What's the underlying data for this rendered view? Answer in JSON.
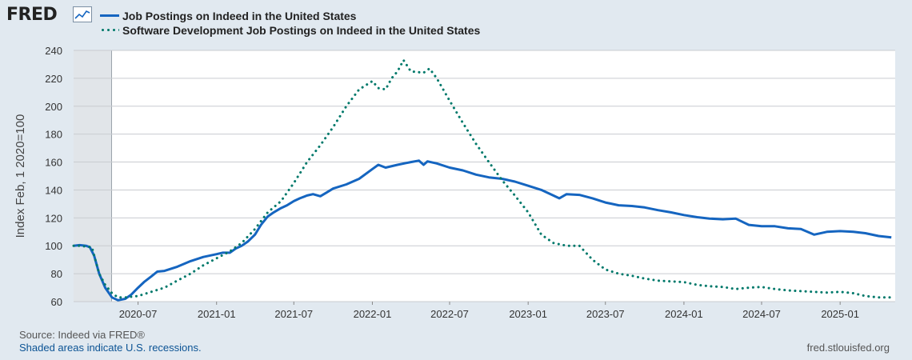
{
  "branding": {
    "logo_text": "FRED",
    "logo_icon": "chart-line-icon",
    "site": "fred.stlouisfed.org"
  },
  "colors": {
    "background": "#e1e9f0",
    "plot_bg": "#ffffff",
    "series_total": "#1565c0",
    "series_software": "#00796b",
    "recession": "#e1e5e9",
    "grid": "#c9ccd0"
  },
  "legend": {
    "items": [
      {
        "label": "Job Postings on Indeed in the United States",
        "style": "solid"
      },
      {
        "label": "Software Development Job Postings on Indeed in the United States",
        "style": "dotted"
      }
    ]
  },
  "footer": {
    "source": "Source: Indeed via FRED®",
    "shaded_note": "Shaded areas indicate U.S. recessions."
  },
  "chart_data": {
    "type": "line",
    "title": "",
    "xlabel": "",
    "ylabel": "Index Feb, 1 2020=100",
    "x_range": [
      "2020-02-01",
      "2025-05-10"
    ],
    "ylim": [
      60,
      240
    ],
    "yticks": [
      60,
      80,
      100,
      120,
      140,
      160,
      180,
      200,
      220,
      240
    ],
    "xticks": [
      "2020-07",
      "2021-01",
      "2021-07",
      "2022-01",
      "2022-07",
      "2023-01",
      "2023-07",
      "2024-01",
      "2024-07",
      "2025-01"
    ],
    "grid": true,
    "legend_position": "top-left",
    "recession_shading": [
      {
        "start": "2020-02-01",
        "end": "2020-04-30"
      }
    ],
    "series": [
      {
        "name": "Job Postings on Indeed in the United States",
        "style": "solid",
        "points": [
          [
            "2020-02-01",
            100
          ],
          [
            "2020-02-15",
            100.5
          ],
          [
            "2020-03-01",
            100
          ],
          [
            "2020-03-10",
            99
          ],
          [
            "2020-03-20",
            93
          ],
          [
            "2020-04-01",
            80
          ],
          [
            "2020-04-15",
            70
          ],
          [
            "2020-05-01",
            63
          ],
          [
            "2020-05-15",
            61
          ],
          [
            "2020-06-01",
            62
          ],
          [
            "2020-06-15",
            65
          ],
          [
            "2020-07-01",
            70
          ],
          [
            "2020-07-15",
            74
          ],
          [
            "2020-08-01",
            78
          ],
          [
            "2020-08-15",
            81.5
          ],
          [
            "2020-09-01",
            82
          ],
          [
            "2020-10-01",
            85
          ],
          [
            "2020-11-01",
            89
          ],
          [
            "2020-12-01",
            92
          ],
          [
            "2021-01-01",
            94
          ],
          [
            "2021-01-15",
            95
          ],
          [
            "2021-02-01",
            95
          ],
          [
            "2021-02-15",
            98
          ],
          [
            "2021-03-01",
            100
          ],
          [
            "2021-03-15",
            103
          ],
          [
            "2021-04-01",
            108
          ],
          [
            "2021-04-15",
            115
          ],
          [
            "2021-05-01",
            121
          ],
          [
            "2021-05-15",
            124
          ],
          [
            "2021-06-01",
            127
          ],
          [
            "2021-06-15",
            129
          ],
          [
            "2021-07-01",
            132
          ],
          [
            "2021-07-15",
            134
          ],
          [
            "2021-08-01",
            136
          ],
          [
            "2021-08-15",
            137
          ],
          [
            "2021-09-01",
            135.5
          ],
          [
            "2021-09-15",
            138
          ],
          [
            "2021-10-01",
            141
          ],
          [
            "2021-11-01",
            144
          ],
          [
            "2021-12-01",
            148
          ],
          [
            "2022-01-01",
            155
          ],
          [
            "2022-01-15",
            158
          ],
          [
            "2022-02-01",
            156
          ],
          [
            "2022-03-01",
            158
          ],
          [
            "2022-04-01",
            160
          ],
          [
            "2022-04-20",
            161
          ],
          [
            "2022-05-01",
            158
          ],
          [
            "2022-05-10",
            160.5
          ],
          [
            "2022-06-01",
            159
          ],
          [
            "2022-07-01",
            156
          ],
          [
            "2022-08-01",
            154
          ],
          [
            "2022-09-01",
            151
          ],
          [
            "2022-10-01",
            149
          ],
          [
            "2022-11-01",
            148
          ],
          [
            "2022-12-01",
            146
          ],
          [
            "2023-01-01",
            143
          ],
          [
            "2023-02-01",
            140
          ],
          [
            "2023-03-01",
            136
          ],
          [
            "2023-03-15",
            134
          ],
          [
            "2023-04-01",
            137
          ],
          [
            "2023-05-01",
            136.5
          ],
          [
            "2023-06-01",
            134
          ],
          [
            "2023-07-01",
            131
          ],
          [
            "2023-08-01",
            129
          ],
          [
            "2023-09-01",
            128.5
          ],
          [
            "2023-10-01",
            127.5
          ],
          [
            "2023-11-01",
            125.5
          ],
          [
            "2023-12-01",
            124
          ],
          [
            "2024-01-01",
            122
          ],
          [
            "2024-02-01",
            120.5
          ],
          [
            "2024-03-01",
            119.5
          ],
          [
            "2024-04-01",
            119
          ],
          [
            "2024-05-01",
            119.5
          ],
          [
            "2024-06-01",
            115
          ],
          [
            "2024-07-01",
            114
          ],
          [
            "2024-08-01",
            114
          ],
          [
            "2024-09-01",
            112.5
          ],
          [
            "2024-10-01",
            112
          ],
          [
            "2024-11-01",
            108
          ],
          [
            "2024-12-01",
            110
          ],
          [
            "2025-01-01",
            110.5
          ],
          [
            "2025-02-01",
            110
          ],
          [
            "2025-03-01",
            109
          ],
          [
            "2025-04-01",
            107
          ],
          [
            "2025-05-01",
            106
          ]
        ]
      },
      {
        "name": "Software Development Job Postings on Indeed in the United States",
        "style": "dotted",
        "points": [
          [
            "2020-02-01",
            100
          ],
          [
            "2020-02-15",
            100
          ],
          [
            "2020-03-01",
            99.5
          ],
          [
            "2020-03-15",
            99
          ],
          [
            "2020-04-01",
            80
          ],
          [
            "2020-04-15",
            72
          ],
          [
            "2020-05-01",
            66
          ],
          [
            "2020-05-15",
            63
          ],
          [
            "2020-06-01",
            63
          ],
          [
            "2020-07-01",
            64
          ],
          [
            "2020-08-01",
            67
          ],
          [
            "2020-09-01",
            70
          ],
          [
            "2020-10-01",
            75
          ],
          [
            "2020-11-01",
            80
          ],
          [
            "2020-12-01",
            86
          ],
          [
            "2021-01-01",
            91
          ],
          [
            "2021-02-01",
            96
          ],
          [
            "2021-03-01",
            102
          ],
          [
            "2021-04-01",
            112
          ],
          [
            "2021-05-01",
            124
          ],
          [
            "2021-06-01",
            132
          ],
          [
            "2021-07-01",
            145
          ],
          [
            "2021-08-01",
            160
          ],
          [
            "2021-09-01",
            172
          ],
          [
            "2021-10-01",
            185
          ],
          [
            "2021-11-01",
            200
          ],
          [
            "2021-12-01",
            212
          ],
          [
            "2022-01-01",
            218
          ],
          [
            "2022-01-15",
            213
          ],
          [
            "2022-02-01",
            212
          ],
          [
            "2022-02-15",
            220
          ],
          [
            "2022-03-01",
            225
          ],
          [
            "2022-03-15",
            233
          ],
          [
            "2022-04-01",
            225
          ],
          [
            "2022-05-01",
            224
          ],
          [
            "2022-05-15",
            227
          ],
          [
            "2022-06-01",
            220
          ],
          [
            "2022-07-01",
            204
          ],
          [
            "2022-08-01",
            188
          ],
          [
            "2022-09-01",
            173
          ],
          [
            "2022-10-01",
            160
          ],
          [
            "2022-11-01",
            147
          ],
          [
            "2022-12-01",
            136
          ],
          [
            "2023-01-01",
            124
          ],
          [
            "2023-02-01",
            108
          ],
          [
            "2023-03-01",
            102
          ],
          [
            "2023-04-01",
            100
          ],
          [
            "2023-05-01",
            100
          ],
          [
            "2023-06-01",
            90
          ],
          [
            "2023-07-01",
            83
          ],
          [
            "2023-08-01",
            80
          ],
          [
            "2023-09-01",
            78.5
          ],
          [
            "2023-10-01",
            76.5
          ],
          [
            "2023-11-01",
            75
          ],
          [
            "2023-12-01",
            74.5
          ],
          [
            "2024-01-01",
            74
          ],
          [
            "2024-02-01",
            72
          ],
          [
            "2024-03-01",
            71
          ],
          [
            "2024-04-01",
            70.5
          ],
          [
            "2024-05-01",
            69
          ],
          [
            "2024-06-01",
            70
          ],
          [
            "2024-07-01",
            70.5
          ],
          [
            "2024-08-01",
            69
          ],
          [
            "2024-09-01",
            68
          ],
          [
            "2024-10-01",
            67.5
          ],
          [
            "2024-11-01",
            67
          ],
          [
            "2024-12-01",
            66.5
          ],
          [
            "2025-01-01",
            67
          ],
          [
            "2025-02-01",
            66
          ],
          [
            "2025-03-01",
            64
          ],
          [
            "2025-04-01",
            63
          ],
          [
            "2025-05-01",
            63
          ]
        ]
      }
    ]
  }
}
